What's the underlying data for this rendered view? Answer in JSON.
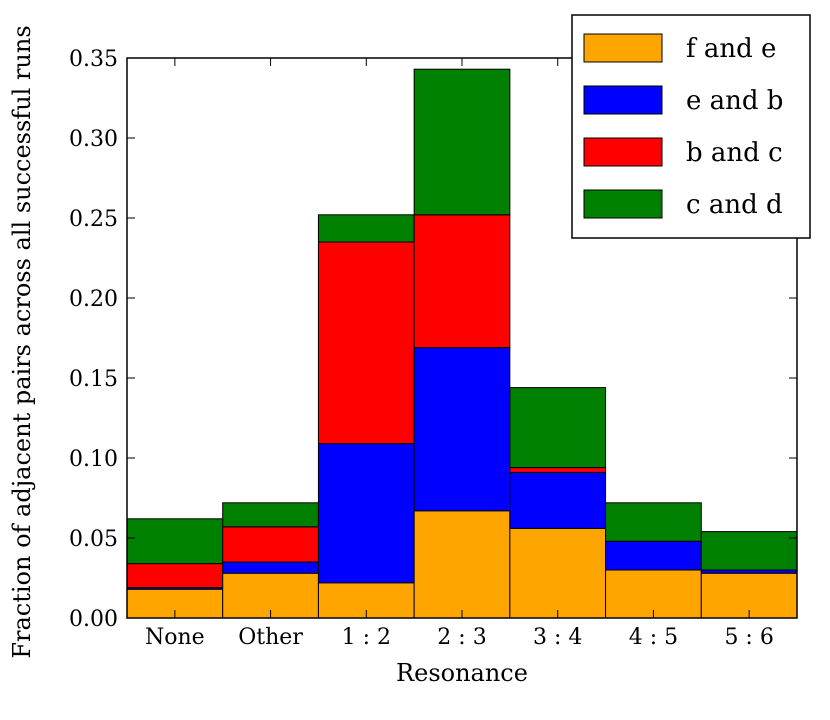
{
  "chart_data": {
    "type": "bar",
    "stacked": true,
    "title": "",
    "xlabel": "Resonance",
    "ylabel": "Fraction of adjacent pairs across all successful runs",
    "ylim": [
      0,
      0.35
    ],
    "yticks": [
      0.0,
      0.05,
      0.1,
      0.15,
      0.2,
      0.25,
      0.3,
      0.35
    ],
    "ytick_labels": [
      "0.00",
      "0.05",
      "0.10",
      "0.15",
      "0.20",
      "0.25",
      "0.30",
      "0.35"
    ],
    "categories": [
      "None",
      "Other",
      "1 : 2",
      "2 : 3",
      "3 : 4",
      "4 : 5",
      "5 : 6"
    ],
    "series": [
      {
        "name": "f and e",
        "color": "#FFA500",
        "values": [
          0.018,
          0.028,
          0.022,
          0.067,
          0.056,
          0.03,
          0.028
        ]
      },
      {
        "name": "e and b",
        "color": "#0000FF",
        "values": [
          0.001,
          0.007,
          0.087,
          0.102,
          0.035,
          0.018,
          0.002
        ]
      },
      {
        "name": "b and c",
        "color": "#FF0000",
        "values": [
          0.015,
          0.022,
          0.126,
          0.083,
          0.003,
          0.0,
          0.0
        ]
      },
      {
        "name": "c and d",
        "color": "#008000",
        "values": [
          0.028,
          0.015,
          0.017,
          0.091,
          0.05,
          0.024,
          0.024
        ]
      }
    ],
    "legend_position": "top-right",
    "grid": false
  }
}
